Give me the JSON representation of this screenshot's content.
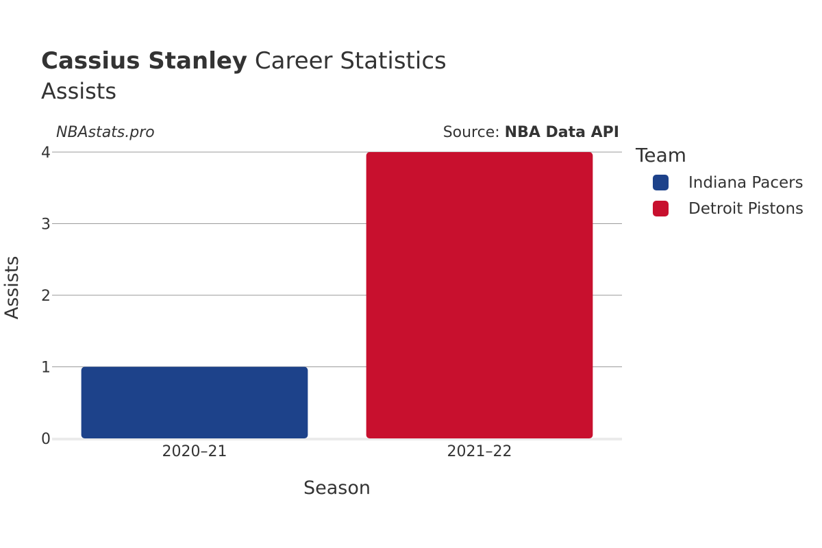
{
  "header": {
    "player_name": "Cassius Stanley",
    "title_rest": " Career Statistics",
    "subtitle": "Assists"
  },
  "credits": {
    "site": "NBAstats.pro",
    "source_prefix": "Source: ",
    "source_name": "NBA Data API"
  },
  "chart_data": {
    "type": "bar",
    "title": "Cassius Stanley Career Statistics",
    "subtitle": "Assists",
    "xlabel": "Season",
    "ylabel": "Assists",
    "categories": [
      "2020–21",
      "2021–22"
    ],
    "series": [
      {
        "name": "Indiana Pacers",
        "color": "#1d428a",
        "values": [
          1,
          null
        ]
      },
      {
        "name": "Detroit Pistons",
        "color": "#c8102e",
        "values": [
          null,
          4
        ]
      }
    ],
    "ylim": [
      0,
      4
    ],
    "yticks": [
      0,
      1,
      2,
      3,
      4
    ],
    "grid": true,
    "legend_title": "Team",
    "legend_position": "right"
  }
}
